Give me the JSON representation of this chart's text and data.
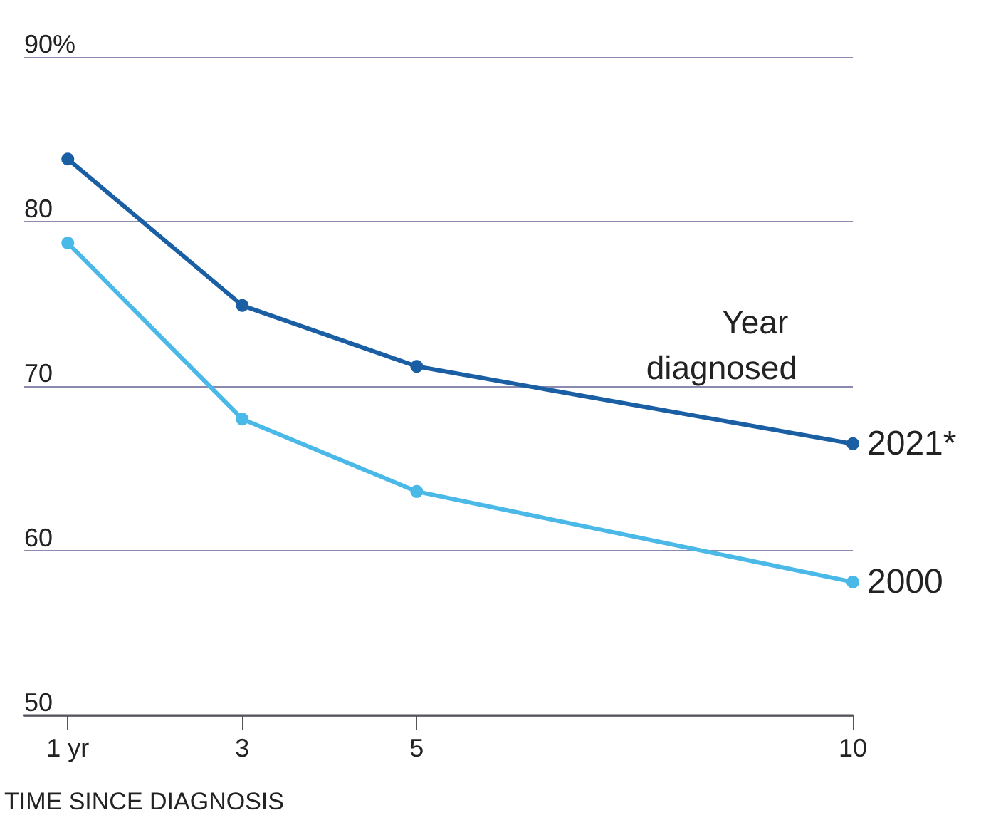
{
  "chart_data": {
    "type": "line",
    "x": [
      1,
      3,
      5,
      10
    ],
    "xlabel": "TIME SINCE DIAGNOSIS",
    "legend_title": "Year diagnosed",
    "series": [
      {
        "name": "2021*",
        "color": "#1a5fa3",
        "values": [
          83.8,
          74.9,
          71.2,
          66.5
        ]
      },
      {
        "name": "2000",
        "color": "#4bb9e8",
        "values": [
          78.7,
          68.0,
          63.6,
          58.1
        ]
      }
    ],
    "xlim": [
      0.5,
      10
    ],
    "xticks": [
      {
        "value": 1,
        "label": "1 yr"
      },
      3,
      5,
      10
    ],
    "ylim": [
      50,
      90
    ],
    "yticks": [
      50,
      60,
      70,
      80,
      {
        "value": 90,
        "label": "90%"
      }
    ],
    "grid": "y",
    "marker": "circle",
    "line_style": "solid"
  }
}
